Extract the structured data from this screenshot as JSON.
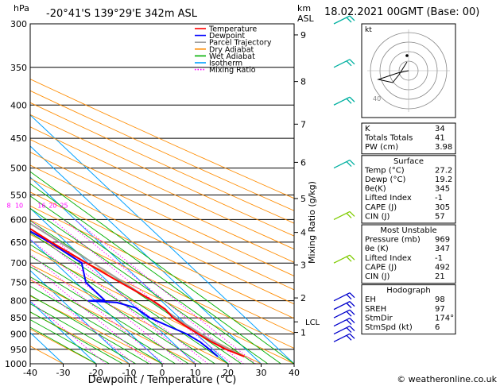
{
  "header": {
    "units_left": "hPa",
    "location": "-20°41'S  139°29'E  342m  ASL",
    "units_right_km": "km",
    "units_right_asl": "ASL",
    "datetime": "18.02.2021  00GMT  (Base: 00)"
  },
  "footer": {
    "credit": "© weatheronline.co.uk"
  },
  "legend": [
    {
      "label": "Temperature",
      "color": "#ff0000",
      "dotted": false
    },
    {
      "label": "Dewpoint",
      "color": "#0000ff",
      "dotted": false
    },
    {
      "label": "Parcel Trajectory",
      "color": "#a0a0a0",
      "dotted": false
    },
    {
      "label": "Dry Adiabat",
      "color": "#ff8c00",
      "dotted": false
    },
    {
      "label": "Wet Adiabat",
      "color": "#00b000",
      "dotted": false
    },
    {
      "label": "Isotherm",
      "color": "#00a0ff",
      "dotted": false
    },
    {
      "label": "Mixing Ratio",
      "color": "#ff00ff",
      "dotted": true
    }
  ],
  "chart_data": {
    "type": "skew-t",
    "xlabel": "Dewpoint / Temperature (°C)",
    "ylabel_right": "Mixing Ratio (g/kg)",
    "ylabel_left": "hPa",
    "xlim": [
      -40,
      40
    ],
    "xticks": [
      -40,
      -30,
      -20,
      -10,
      0,
      10,
      20,
      30,
      40
    ],
    "pressure_levels": [
      300,
      350,
      400,
      450,
      500,
      550,
      600,
      650,
      700,
      750,
      800,
      850,
      900,
      950,
      1000
    ],
    "km_labels": [
      {
        "km": "9",
        "p": 312
      },
      {
        "km": "8",
        "p": 368
      },
      {
        "km": "7",
        "p": 428
      },
      {
        "km": "6",
        "p": 490
      },
      {
        "km": "5",
        "p": 557
      },
      {
        "km": "4",
        "p": 628
      },
      {
        "km": "3",
        "p": 705
      },
      {
        "km": "2",
        "p": 792
      },
      {
        "km": "1",
        "p": 895
      }
    ],
    "lcl": {
      "label": "LCL",
      "p": 862
    },
    "mixing_ratio_labels": [
      "1",
      "2",
      "3",
      "4",
      "6",
      "8",
      "10",
      "16",
      "20",
      "25"
    ],
    "mixing_ratio_label_p": 582,
    "temperature": [
      {
        "p": 975,
        "t": 27.2
      },
      {
        "p": 950,
        "t": 24
      },
      {
        "p": 925,
        "t": 22
      },
      {
        "p": 900,
        "t": 20.5
      },
      {
        "p": 870,
        "t": 19
      },
      {
        "p": 850,
        "t": 18
      },
      {
        "p": 825,
        "t": 18.5
      },
      {
        "p": 800,
        "t": 17.5
      },
      {
        "p": 750,
        "t": 13.5
      },
      {
        "p": 700,
        "t": 9.5
      },
      {
        "p": 650,
        "t": 5.5
      },
      {
        "p": 600,
        "t": 2
      },
      {
        "p": 550,
        "t": -2
      },
      {
        "p": 500,
        "t": -7.5
      },
      {
        "p": 450,
        "t": -13.5
      },
      {
        "p": 400,
        "t": -21.5
      },
      {
        "p": 380,
        "t": -26
      },
      {
        "p": 370,
        "t": -27
      },
      {
        "p": 360,
        "t": -26.5
      }
    ],
    "dewpoint": [
      {
        "p": 975,
        "t": 19.2
      },
      {
        "p": 950,
        "t": 19
      },
      {
        "p": 925,
        "t": 18.5
      },
      {
        "p": 900,
        "t": 17
      },
      {
        "p": 875,
        "t": 14
      },
      {
        "p": 850,
        "t": 11
      },
      {
        "p": 820,
        "t": 10
      },
      {
        "p": 805,
        "t": 6
      },
      {
        "p": 800,
        "t": -2
      },
      {
        "p": 798,
        "t": 3
      },
      {
        "p": 750,
        "t": 3
      },
      {
        "p": 700,
        "t": 8
      },
      {
        "p": 650,
        "t": 5
      },
      {
        "p": 620,
        "t": 2
      },
      {
        "p": 600,
        "t": -5
      },
      {
        "p": 580,
        "t": -6
      },
      {
        "p": 560,
        "t": -11
      },
      {
        "p": 550,
        "t": -28
      },
      {
        "p": 500,
        "t": -6
      },
      {
        "p": 480,
        "t": -11
      },
      {
        "p": 465,
        "t": -7
      },
      {
        "p": 455,
        "t": -11
      },
      {
        "p": 420,
        "t": -5
      },
      {
        "p": 400,
        "t": -11
      },
      {
        "p": 380,
        "t": -12
      },
      {
        "p": 370,
        "t": -35
      },
      {
        "p": 300,
        "t": -37
      }
    ],
    "parcel": [
      {
        "p": 975,
        "t": 27.2
      },
      {
        "p": 920,
        "t": 22.5
      },
      {
        "p": 862,
        "t": 19.5
      },
      {
        "p": 800,
        "t": 17
      },
      {
        "p": 750,
        "t": 14.5
      },
      {
        "p": 700,
        "t": 11.5
      },
      {
        "p": 650,
        "t": 8
      },
      {
        "p": 600,
        "t": 4.5
      },
      {
        "p": 550,
        "t": 0.5
      },
      {
        "p": 500,
        "t": -4
      },
      {
        "p": 450,
        "t": -9.5
      },
      {
        "p": 400,
        "t": -16
      },
      {
        "p": 360,
        "t": -22
      }
    ],
    "wind_levels": [
      925,
      900,
      875,
      850,
      825,
      800,
      700,
      600,
      500,
      400,
      350,
      300
    ],
    "hodograph": {
      "rings_kt": [
        10,
        20,
        30,
        40
      ],
      "ring_label": "40",
      "label": "kt"
    }
  },
  "indices": {
    "block1": [
      {
        "label": "K",
        "value": "34"
      },
      {
        "label": "Totals Totals",
        "value": "41"
      },
      {
        "label": "PW (cm)",
        "value": "3.98"
      }
    ],
    "surface": {
      "title": "Surface",
      "rows": [
        {
          "label": "Temp (°C)",
          "value": "27.2"
        },
        {
          "label": "Dewp (°C)",
          "value": "19.2"
        },
        {
          "label": "θe(K)",
          "value": "345"
        },
        {
          "label": "Lifted Index",
          "value": "-1"
        },
        {
          "label": "CAPE (J)",
          "value": "305"
        },
        {
          "label": "CIN (J)",
          "value": "57"
        }
      ]
    },
    "most_unstable": {
      "title": "Most Unstable",
      "rows": [
        {
          "label": "Pressure (mb)",
          "value": "969"
        },
        {
          "label": "θe (K)",
          "value": "347"
        },
        {
          "label": "Lifted Index",
          "value": "-1"
        },
        {
          "label": "CAPE (J)",
          "value": "492"
        },
        {
          "label": "CIN (J)",
          "value": "21"
        }
      ]
    },
    "hodograph_table": {
      "title": "Hodograph",
      "rows": [
        {
          "label": "EH",
          "value": "98"
        },
        {
          "label": "SREH",
          "value": "97"
        },
        {
          "label": "StmDir",
          "value": "174°"
        },
        {
          "label": "StmSpd (kt)",
          "value": "6"
        }
      ]
    }
  }
}
